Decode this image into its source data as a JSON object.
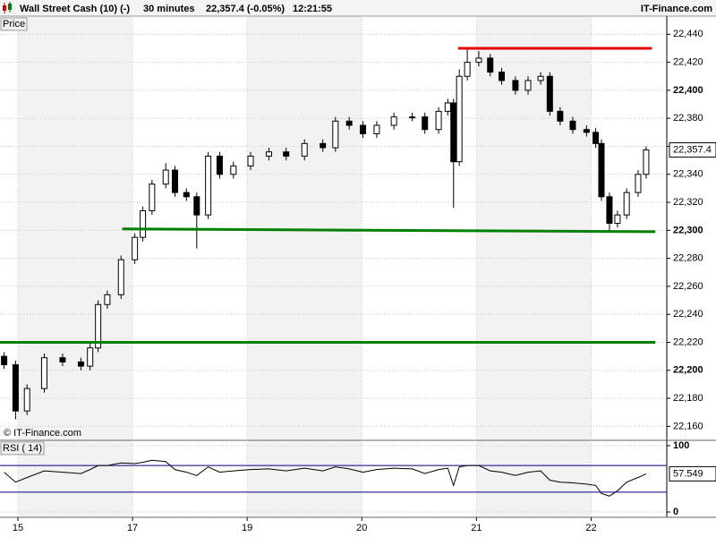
{
  "header": {
    "instrument": "Wall Street Cash (10) (-)",
    "interval": "30 minutes",
    "price": "22,357.4 (-0.05%)",
    "time": "12:21:55",
    "site": "IT-Finance.com"
  },
  "chart_data": [
    {
      "type": "candlestick",
      "panel_label": "Price",
      "watermark": "© IT-Finance.com",
      "last_label": "22,357.4",
      "up_color": "#ffffff",
      "down_color": "#000000",
      "x": [
        -0.12,
        -0.02,
        0.08,
        0.23,
        0.39,
        0.55,
        0.63,
        0.7,
        0.78,
        0.9,
        1.02,
        1.09,
        1.17,
        1.29,
        1.37,
        1.47,
        1.56,
        1.66,
        1.76,
        1.88,
        2.03,
        2.19,
        2.34,
        2.5,
        2.66,
        2.77,
        2.89,
        3.01,
        3.13,
        3.28,
        3.44,
        3.55,
        3.67,
        3.75,
        3.8,
        3.85,
        3.92,
        4.02,
        4.12,
        4.22,
        4.34,
        4.45,
        4.56,
        4.64,
        4.73,
        4.84,
        4.96,
        5.04,
        5.09,
        5.16,
        5.23,
        5.31,
        5.41,
        5.48
      ],
      "open": [
        22210,
        22204,
        22171,
        22187,
        22209,
        22206,
        22203,
        22216,
        22247,
        22254,
        22279,
        22295,
        22314,
        22333,
        22343,
        22327,
        22324,
        22311,
        22353,
        22340,
        22346,
        22353,
        22356,
        22353,
        22362,
        22359,
        22378,
        22375,
        22369,
        22375,
        22381,
        22381,
        22372,
        22385,
        22391,
        22349,
        22410,
        22420,
        22423,
        22413,
        22407,
        22400,
        22407,
        22410,
        22385,
        22378,
        22372,
        22370,
        22362,
        22324,
        22305,
        22311,
        22327,
        22340
      ],
      "high": [
        22213,
        22207,
        22190,
        22212,
        22212,
        22209,
        22219,
        22250,
        22257,
        22282,
        22298,
        22317,
        22336,
        22348,
        22346,
        22330,
        22327,
        22356,
        22356,
        22349,
        22356,
        22359,
        22359,
        22365,
        22365,
        22381,
        22381,
        22378,
        22378,
        22384,
        22384,
        22384,
        22388,
        22394,
        22394,
        22415,
        22429,
        22428,
        22426,
        22416,
        22410,
        22410,
        22413,
        22413,
        22388,
        22381,
        22375,
        22373,
        22365,
        22327,
        22314,
        22330,
        22343,
        22360
      ],
      "low": [
        22201,
        22165,
        22168,
        22184,
        22203,
        22200,
        22200,
        22213,
        22244,
        22251,
        22276,
        22292,
        22311,
        22330,
        22324,
        22321,
        22287,
        22308,
        22337,
        22337,
        22343,
        22350,
        22350,
        22350,
        22356,
        22356,
        22372,
        22366,
        22366,
        22372,
        22378,
        22369,
        22369,
        22382,
        22316,
        22346,
        22407,
        22417,
        22410,
        22404,
        22397,
        22397,
        22404,
        22382,
        22375,
        22369,
        22367,
        22359,
        22321,
        22299,
        22302,
        22308,
        22324,
        22337
      ],
      "close": [
        22204,
        22171,
        22187,
        22209,
        22206,
        22203,
        22216,
        22247,
        22254,
        22279,
        22295,
        22314,
        22333,
        22343,
        22327,
        22324,
        22311,
        22353,
        22340,
        22346,
        22353,
        22356,
        22353,
        22362,
        22359,
        22378,
        22375,
        22369,
        22375,
        22381,
        22381,
        22372,
        22385,
        22391,
        22349,
        22410,
        22420,
        22423,
        22413,
        22407,
        22400,
        22407,
        22410,
        22385,
        22378,
        22372,
        22370,
        22362,
        22324,
        22305,
        22311,
        22327,
        22340,
        22357.4
      ],
      "lines": [
        {
          "color": "#e00000",
          "x1": 3.84,
          "x2": 5.53,
          "y1": 22430,
          "y2": 22430
        },
        {
          "color": "#008000",
          "x1": 0.91,
          "x2": 5.56,
          "y1": 22301,
          "y2": 22299
        },
        {
          "color": "#008000",
          "x1": -0.156,
          "x2": 5.56,
          "y1": 22220,
          "y2": 22220
        }
      ],
      "xlim": [
        -0.156,
        5.66
      ],
      "ylim": [
        22150,
        22453
      ],
      "yticks": [
        {
          "value": 22160,
          "label": "22,160"
        },
        {
          "value": 22180,
          "label": "22,180"
        },
        {
          "value": 22200,
          "label": "22,200"
        },
        {
          "value": 22220,
          "label": "22,220"
        },
        {
          "value": 22240,
          "label": "22,240"
        },
        {
          "value": 22260,
          "label": "22,260"
        },
        {
          "value": 22280,
          "label": "22,280"
        },
        {
          "value": 22300,
          "label": "22,300"
        },
        {
          "value": 22320,
          "label": "22,320"
        },
        {
          "value": 22340,
          "label": "22,340"
        },
        {
          "value": 22360,
          "label": "22,360"
        },
        {
          "value": 22380,
          "label": "22,380"
        },
        {
          "value": 22400,
          "label": "22,400"
        },
        {
          "value": 22420,
          "label": "22,420"
        },
        {
          "value": 22440,
          "label": "22,440"
        }
      ],
      "grid": true
    },
    {
      "type": "line",
      "panel_label": "RSI ( 14)",
      "color": "#000000",
      "levels": [
        70,
        30
      ],
      "level_color": "#000080",
      "x": [
        -0.12,
        -0.02,
        0.08,
        0.23,
        0.39,
        0.55,
        0.63,
        0.7,
        0.78,
        0.9,
        1.02,
        1.09,
        1.17,
        1.29,
        1.37,
        1.47,
        1.56,
        1.66,
        1.76,
        1.88,
        2.03,
        2.19,
        2.34,
        2.5,
        2.66,
        2.77,
        2.89,
        3.01,
        3.13,
        3.28,
        3.44,
        3.55,
        3.67,
        3.75,
        3.8,
        3.85,
        3.92,
        4.02,
        4.12,
        4.22,
        4.34,
        4.45,
        4.56,
        4.64,
        4.73,
        4.84,
        4.96,
        5.04,
        5.09,
        5.16,
        5.23,
        5.31,
        5.41,
        5.48
      ],
      "values": [
        60,
        45,
        52,
        62,
        60,
        58,
        64,
        70,
        70,
        74,
        73,
        75,
        78,
        76,
        64,
        60,
        55,
        68,
        60,
        62,
        64,
        65,
        62,
        66,
        62,
        68,
        65,
        60,
        64,
        66,
        65,
        58,
        64,
        66,
        40,
        68,
        70,
        70,
        62,
        60,
        55,
        60,
        62,
        48,
        45,
        44,
        42,
        40,
        28,
        24,
        32,
        45,
        52,
        57.549
      ],
      "xlim": [
        -0.156,
        5.66
      ],
      "ylim": [
        -8,
        108
      ],
      "yticks": [
        0,
        100
      ],
      "xticks": [
        {
          "value": 0,
          "label": "15"
        },
        {
          "value": 1,
          "label": "17"
        },
        {
          "value": 2,
          "label": "19"
        },
        {
          "value": 3,
          "label": "20"
        },
        {
          "value": 4,
          "label": "21"
        },
        {
          "value": 5,
          "label": "22"
        }
      ],
      "grid": true
    }
  ]
}
